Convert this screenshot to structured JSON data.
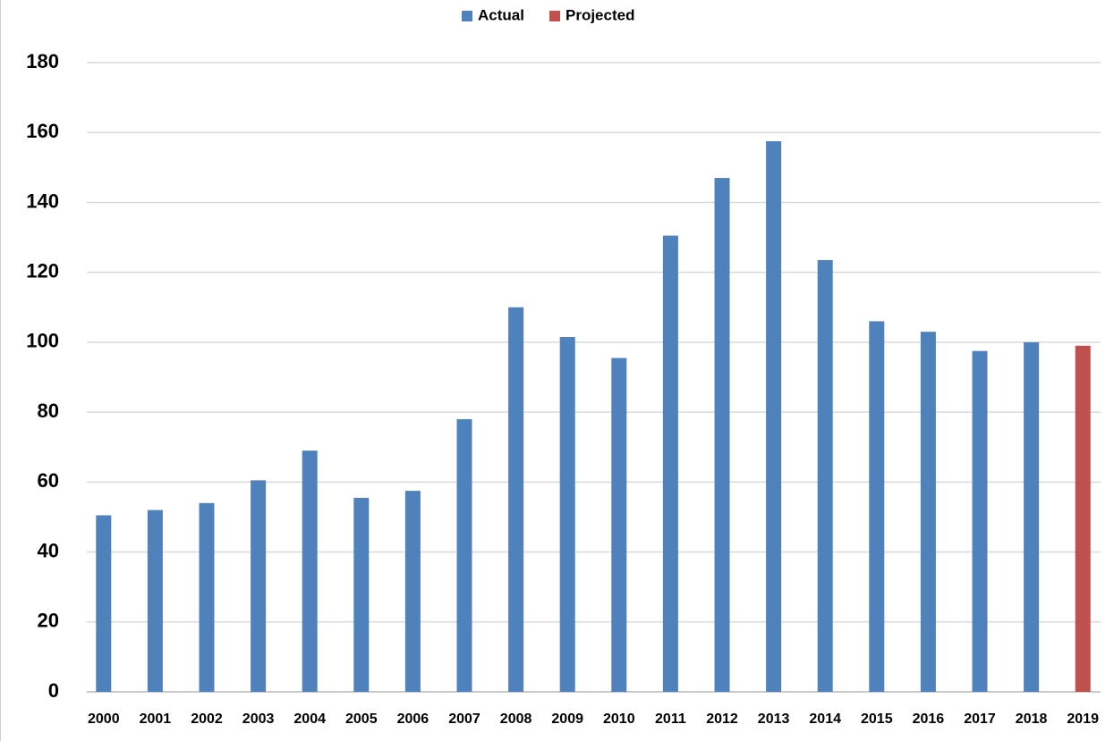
{
  "chart_data": {
    "type": "bar",
    "categories": [
      "2000",
      "2001",
      "2002",
      "2003",
      "2004",
      "2005",
      "2006",
      "2007",
      "2008",
      "2009",
      "2010",
      "2011",
      "2012",
      "2013",
      "2014",
      "2015",
      "2016",
      "2017",
      "2018",
      "2019"
    ],
    "series": [
      {
        "name": "Actual",
        "color": "#4f81bd",
        "values": [
          50.5,
          52,
          54,
          60.5,
          69,
          55.5,
          57.5,
          78,
          110,
          101.5,
          95.5,
          130.5,
          147,
          157.5,
          123.5,
          106,
          103,
          97.5,
          100,
          null
        ]
      },
      {
        "name": "Projected",
        "color": "#c0504d",
        "values": [
          null,
          null,
          null,
          null,
          null,
          null,
          null,
          null,
          null,
          null,
          null,
          null,
          null,
          null,
          null,
          null,
          null,
          null,
          null,
          99
        ]
      }
    ],
    "ylim": [
      0,
      180
    ],
    "yticks": [
      0,
      20,
      40,
      60,
      80,
      100,
      120,
      140,
      160,
      180
    ],
    "grid": true,
    "legend": "top"
  }
}
